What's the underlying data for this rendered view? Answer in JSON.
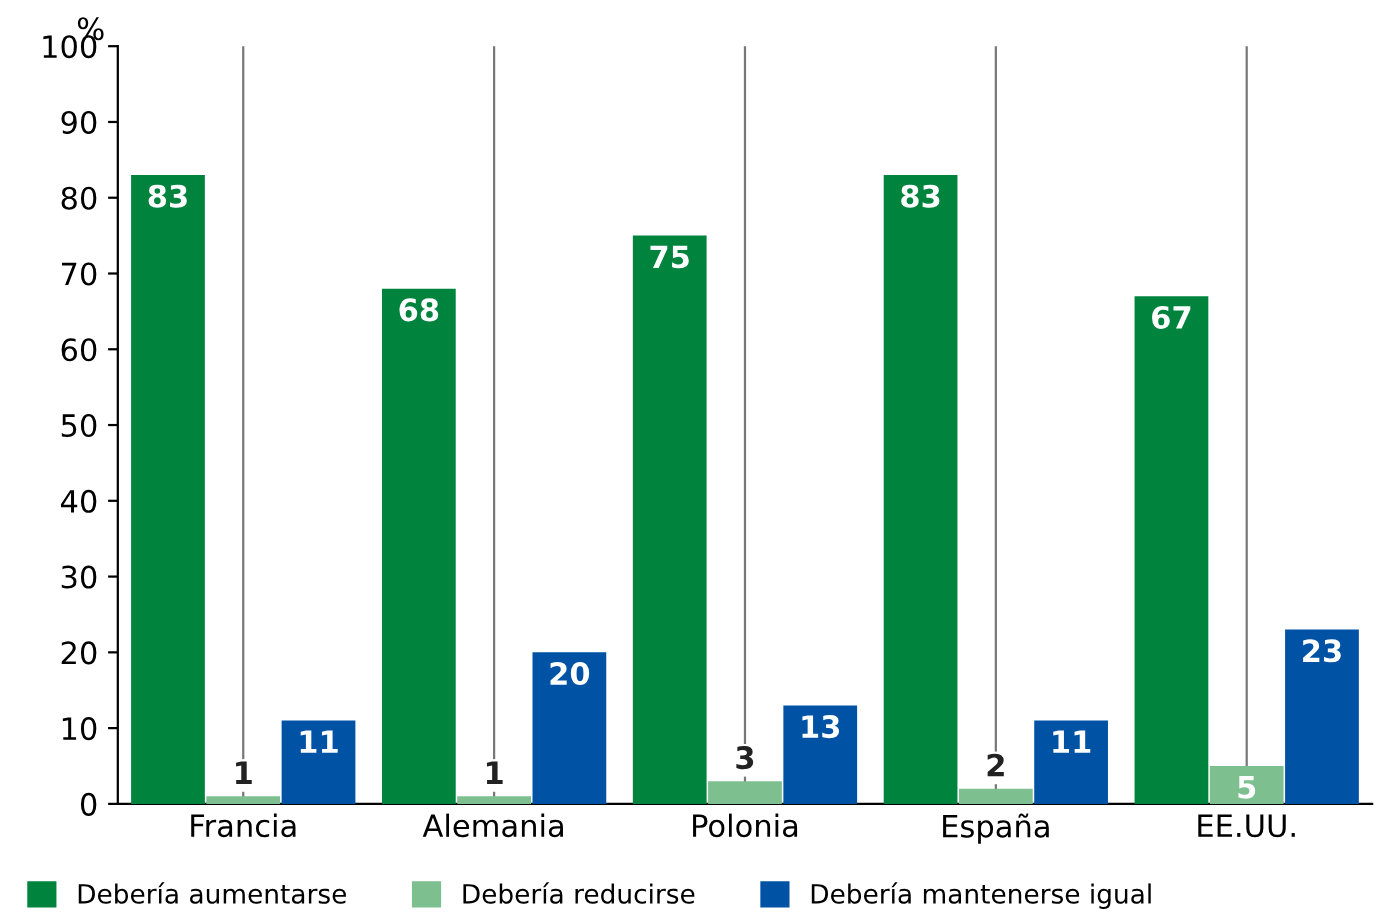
{
  "chart_data": {
    "type": "bar",
    "ylabel": "%",
    "categories": [
      "Francia",
      "Alemania",
      "Polonia",
      "España",
      "EE.UU."
    ],
    "series": [
      {
        "name": "Debería aumentarse",
        "color": "#00843d",
        "values": [
          83,
          68,
          75,
          83,
          67
        ]
      },
      {
        "name": "Debería reducirse",
        "color": "#7dbf8e",
        "values": [
          1,
          1,
          3,
          2,
          5
        ]
      },
      {
        "name": "Debería mantenerse igual",
        "color": "#0052a5",
        "values": [
          11,
          20,
          13,
          11,
          23
        ]
      }
    ],
    "ylim": [
      0,
      100
    ],
    "yticks": [
      0,
      10,
      20,
      30,
      40,
      50,
      60,
      70,
      80,
      90,
      100
    ],
    "grid": "x",
    "legend": "bottom",
    "data_labels": true
  }
}
